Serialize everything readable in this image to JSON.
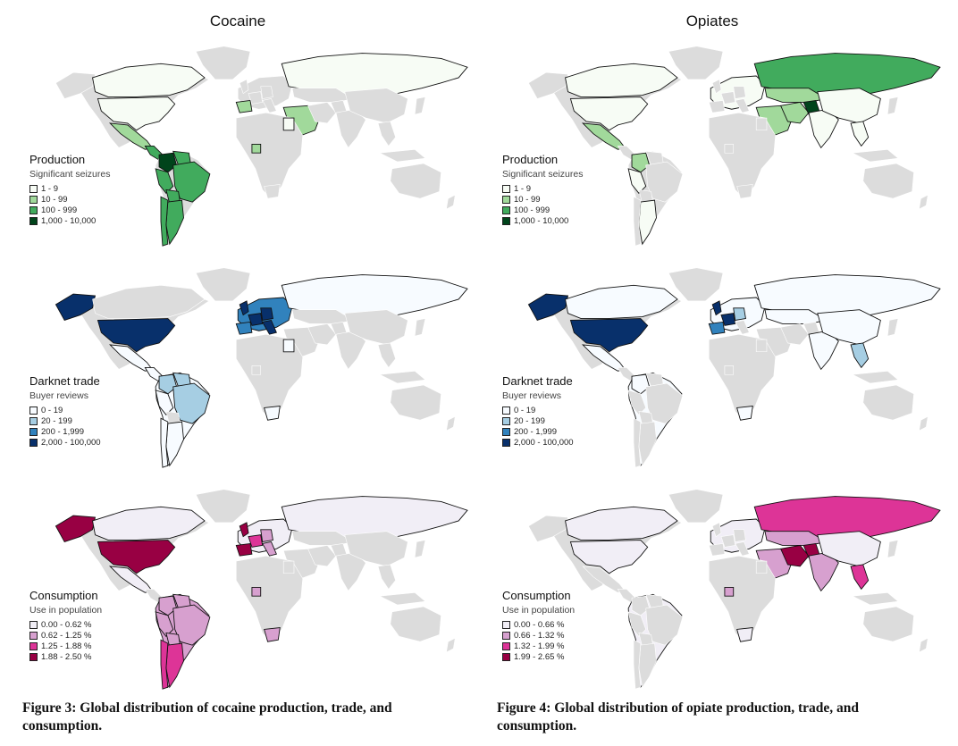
{
  "columns": [
    {
      "title": "Cocaine",
      "caption": "Figure 3: Global distribution of cocaine production, trade, and consumption.",
      "panels": [
        {
          "title": "Production",
          "subtitle": "Significant seizures",
          "items": [
            {
              "label": "1 - 9",
              "color": "#f7fcf5"
            },
            {
              "label": "10 - 99",
              "color": "#a1d99b"
            },
            {
              "label": "100 - 999",
              "color": "#41ab5d"
            },
            {
              "label": "1,000 - 10,000",
              "color": "#00441b"
            }
          ]
        },
        {
          "title": "Darknet trade",
          "subtitle": "Buyer reviews",
          "items": [
            {
              "label": "0 - 19",
              "color": "#f7fbff"
            },
            {
              "label": "20 - 199",
              "color": "#a6cee3"
            },
            {
              "label": "200 - 1,999",
              "color": "#3182bd"
            },
            {
              "label": "2,000 - 100,000",
              "color": "#08306b"
            }
          ]
        },
        {
          "title": "Consumption",
          "subtitle": "Use in population",
          "items": [
            {
              "label": "0.00 - 0.62 %",
              "color": "#f1eef6"
            },
            {
              "label": "0.62 - 1.25 %",
              "color": "#d7a0cf"
            },
            {
              "label": "1.25 - 1.88 %",
              "color": "#dd3497"
            },
            {
              "label": "1.88 - 2.50 %",
              "color": "#980043"
            }
          ]
        }
      ]
    },
    {
      "title": "Opiates",
      "caption": "Figure 4: Global distribution of opiate production, trade, and consumption.",
      "panels": [
        {
          "title": "Production",
          "subtitle": "Significant seizures",
          "items": [
            {
              "label": "1 - 9",
              "color": "#f7fcf5"
            },
            {
              "label": "10 - 99",
              "color": "#a1d99b"
            },
            {
              "label": "100 - 999",
              "color": "#41ab5d"
            },
            {
              "label": "1,000 - 10,000",
              "color": "#00441b"
            }
          ]
        },
        {
          "title": "Darknet trade",
          "subtitle": "Buyer reviews",
          "items": [
            {
              "label": "0 - 19",
              "color": "#f7fbff"
            },
            {
              "label": "20 - 199",
              "color": "#a6cee3"
            },
            {
              "label": "200 - 1,999",
              "color": "#3182bd"
            },
            {
              "label": "2,000 - 100,000",
              "color": "#08306b"
            }
          ]
        },
        {
          "title": "Consumption",
          "subtitle": "Use in population",
          "items": [
            {
              "label": "0.00 - 0.66 %",
              "color": "#f1eef6"
            },
            {
              "label": "0.66 - 1.32 %",
              "color": "#d7a0cf"
            },
            {
              "label": "1.32 - 1.99 %",
              "color": "#dd3497"
            },
            {
              "label": "1.99 - 2.65 %",
              "color": "#980043"
            }
          ]
        }
      ]
    }
  ],
  "map_colors": {
    "no_data": "#dcdcdc",
    "border": "#111111"
  }
}
